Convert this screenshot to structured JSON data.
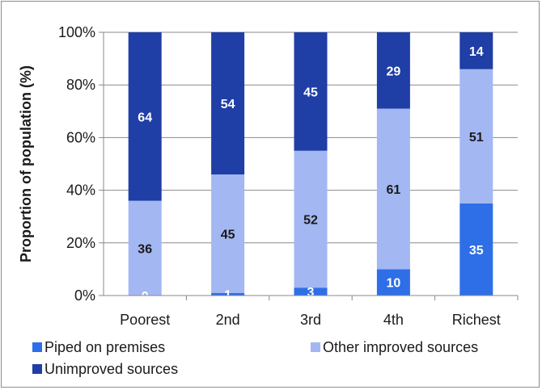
{
  "chart_data": {
    "type": "bar",
    "stacked": true,
    "categories": [
      "Poorest",
      "2nd",
      "3rd",
      "4th",
      "Richest"
    ],
    "series": [
      {
        "name": "Piped on premises",
        "color": "#2e6fe8",
        "values": [
          0,
          1,
          3,
          10,
          35
        ]
      },
      {
        "name": "Other improved sources",
        "color": "#a3b7f2",
        "values": [
          36,
          45,
          52,
          61,
          51
        ]
      },
      {
        "name": "Unimproved sources",
        "color": "#1f3ea6",
        "values": [
          64,
          54,
          45,
          29,
          14
        ]
      }
    ],
    "ylabel": "Proportion of population (%)",
    "ylim": [
      0,
      100
    ],
    "yticks": [
      "0%",
      "20%",
      "40%",
      "60%",
      "80%",
      "100%"
    ],
    "grid": true,
    "legend": "bottom"
  }
}
